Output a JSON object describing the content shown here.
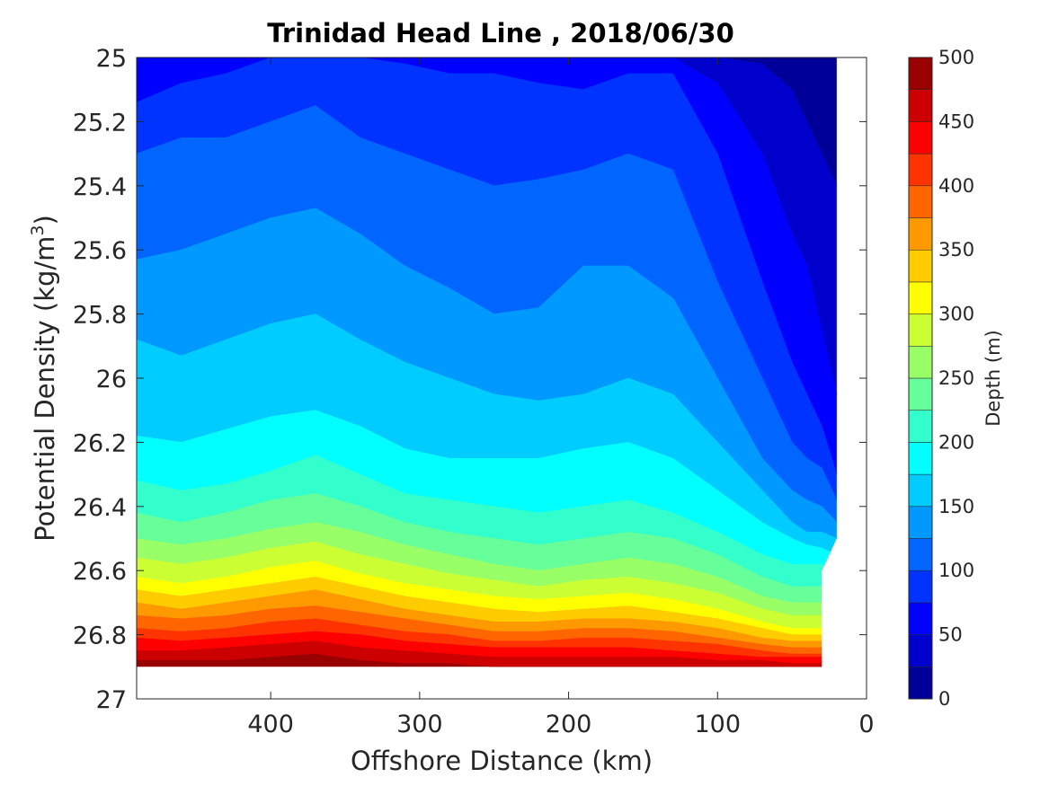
{
  "chart_data": {
    "type": "contourf",
    "title": "Trinidad Head Line , 2018/06/30",
    "xlabel": "Offshore Distance (km)",
    "ylabel_main": "Potential Density (kg/m",
    "ylabel_sup": "3",
    "ylabel_close": ")",
    "xlim": [
      490,
      0
    ],
    "x_reversed": true,
    "ylim": [
      25,
      27
    ],
    "y_reversed": true,
    "x_ticks": [
      400,
      300,
      200,
      100,
      0
    ],
    "y_ticks": [
      25,
      25.2,
      25.4,
      25.6,
      25.8,
      26,
      26.2,
      26.4,
      26.6,
      26.8,
      27
    ],
    "y_tick_labels": [
      "25",
      "25.2",
      "25.4",
      "25.6",
      "25.8",
      "26",
      "26.2",
      "26.4",
      "26.6",
      "26.8",
      "27"
    ],
    "colorbar": {
      "label": "Depth (m)",
      "range": [
        0,
        500
      ],
      "levels": 20,
      "step": 25,
      "ticks": [
        0,
        50,
        100,
        150,
        200,
        250,
        300,
        350,
        400,
        450,
        500
      ],
      "colormap": "jet"
    },
    "x": [
      490,
      460,
      430,
      400,
      370,
      340,
      310,
      280,
      250,
      220,
      190,
      160,
      130,
      100,
      70,
      50,
      40,
      30,
      20
    ],
    "isolines": [
      {
        "depth": 25,
        "density": [
          25.0,
          25.0,
          25.0,
          25.0,
          25.0,
          25.0,
          25.0,
          25.0,
          25.0,
          25.0,
          25.0,
          25.0,
          25.0,
          25.0,
          25.02,
          25.1,
          25.2,
          25.3,
          25.4
        ]
      },
      {
        "depth": 50,
        "density": [
          25.0,
          25.0,
          25.0,
          25.0,
          25.0,
          25.0,
          25.0,
          25.0,
          25.0,
          25.0,
          25.0,
          25.0,
          25.0,
          25.08,
          25.3,
          25.55,
          25.65,
          25.85,
          26.05
        ]
      },
      {
        "depth": 75,
        "density": [
          25.14,
          25.08,
          25.05,
          25.0,
          24.98,
          25.0,
          25.02,
          25.05,
          25.05,
          25.08,
          25.1,
          25.05,
          25.05,
          25.3,
          25.7,
          25.95,
          26.05,
          26.15,
          26.3
        ]
      },
      {
        "depth": 100,
        "density": [
          25.3,
          25.25,
          25.25,
          25.2,
          25.15,
          25.25,
          25.3,
          25.35,
          25.4,
          25.38,
          25.35,
          25.3,
          25.35,
          25.7,
          26.0,
          26.2,
          26.25,
          26.28,
          26.38
        ]
      },
      {
        "depth": 125,
        "density": [
          25.63,
          25.6,
          25.55,
          25.5,
          25.47,
          25.55,
          25.65,
          25.72,
          25.8,
          25.78,
          25.65,
          25.65,
          25.75,
          26.0,
          26.25,
          26.35,
          26.38,
          26.4,
          26.45
        ]
      },
      {
        "depth": 150,
        "density": [
          25.88,
          25.93,
          25.88,
          25.83,
          25.8,
          25.88,
          25.95,
          26.0,
          26.05,
          26.07,
          26.05,
          26.0,
          26.05,
          26.2,
          26.35,
          26.45,
          26.48,
          26.48,
          26.5
        ]
      },
      {
        "depth": 175,
        "density": [
          26.18,
          26.2,
          26.16,
          26.12,
          26.1,
          26.15,
          26.22,
          26.25,
          26.25,
          26.25,
          26.22,
          26.2,
          26.25,
          26.35,
          26.45,
          26.5,
          26.52,
          26.53,
          26.55
        ]
      },
      {
        "depth": 200,
        "density": [
          26.32,
          26.35,
          26.33,
          26.29,
          26.24,
          26.3,
          26.36,
          26.38,
          26.4,
          26.42,
          26.4,
          26.38,
          26.42,
          26.48,
          26.55,
          26.58,
          26.58,
          26.58,
          26.6
        ]
      },
      {
        "depth": 225,
        "density": [
          26.42,
          26.45,
          26.42,
          26.38,
          26.36,
          26.4,
          26.45,
          26.48,
          26.5,
          26.52,
          26.5,
          26.48,
          26.5,
          26.55,
          26.62,
          26.65,
          26.65,
          26.65,
          26.68
        ]
      },
      {
        "depth": 250,
        "density": [
          26.5,
          26.52,
          26.5,
          26.47,
          26.45,
          26.48,
          26.52,
          26.55,
          26.58,
          26.6,
          26.58,
          26.56,
          26.58,
          26.62,
          26.68,
          26.7,
          26.7,
          26.7,
          26.72
        ]
      },
      {
        "depth": 275,
        "density": [
          26.56,
          26.58,
          26.56,
          26.53,
          26.51,
          26.55,
          26.58,
          26.61,
          26.63,
          26.65,
          26.63,
          26.62,
          26.64,
          26.67,
          26.72,
          26.74,
          26.74,
          26.74,
          26.76
        ]
      },
      {
        "depth": 300,
        "density": [
          26.62,
          26.64,
          26.62,
          26.59,
          26.57,
          26.61,
          26.64,
          26.66,
          26.68,
          26.69,
          26.68,
          26.67,
          26.69,
          26.72,
          26.76,
          26.78,
          26.78,
          26.78,
          26.79
        ]
      },
      {
        "depth": 325,
        "density": [
          26.66,
          26.68,
          26.66,
          26.64,
          26.62,
          26.65,
          26.68,
          26.7,
          26.72,
          26.73,
          26.72,
          26.71,
          26.73,
          26.75,
          26.78,
          26.8,
          26.8,
          26.8,
          26.81
        ]
      },
      {
        "depth": 350,
        "density": [
          26.7,
          26.72,
          26.7,
          26.68,
          26.66,
          26.69,
          26.72,
          26.74,
          26.76,
          26.76,
          26.75,
          26.75,
          26.76,
          26.78,
          26.81,
          26.82,
          26.82,
          26.82,
          26.83
        ]
      },
      {
        "depth": 375,
        "density": [
          26.74,
          26.75,
          26.74,
          26.72,
          26.71,
          26.73,
          26.75,
          26.77,
          26.79,
          26.79,
          26.78,
          26.78,
          26.79,
          26.81,
          26.83,
          26.84,
          26.84,
          26.84,
          26.85
        ]
      },
      {
        "depth": 400,
        "density": [
          26.78,
          26.79,
          26.78,
          26.76,
          26.75,
          26.77,
          26.79,
          26.8,
          26.82,
          26.82,
          26.81,
          26.81,
          26.82,
          26.83,
          26.85,
          26.86,
          26.86,
          26.86,
          26.87
        ]
      },
      {
        "depth": 425,
        "density": [
          26.81,
          26.82,
          26.81,
          26.8,
          26.79,
          26.8,
          26.82,
          26.83,
          26.84,
          26.84,
          26.84,
          26.84,
          26.85,
          26.86,
          26.87,
          26.87,
          26.87,
          26.87,
          26.88
        ]
      },
      {
        "depth": 450,
        "density": [
          26.85,
          26.85,
          26.84,
          26.83,
          26.82,
          26.84,
          26.85,
          26.86,
          26.87,
          26.87,
          26.87,
          26.87,
          26.87,
          26.88,
          26.88,
          26.89,
          26.89,
          26.89,
          26.89
        ]
      },
      {
        "depth": 475,
        "density": [
          26.88,
          26.88,
          26.88,
          26.87,
          26.86,
          26.88,
          26.89,
          26.89,
          26.9,
          26.9,
          26.9,
          26.9,
          26.9,
          26.9,
          26.9,
          26.9,
          26.9,
          26.9,
          26.9
        ]
      }
    ],
    "bottom_boundary": {
      "x": [
        490,
        30,
        30,
        20,
        20
      ],
      "density": [
        26.9,
        26.9,
        26.6,
        26.5,
        25.0
      ]
    },
    "grid": false
  }
}
